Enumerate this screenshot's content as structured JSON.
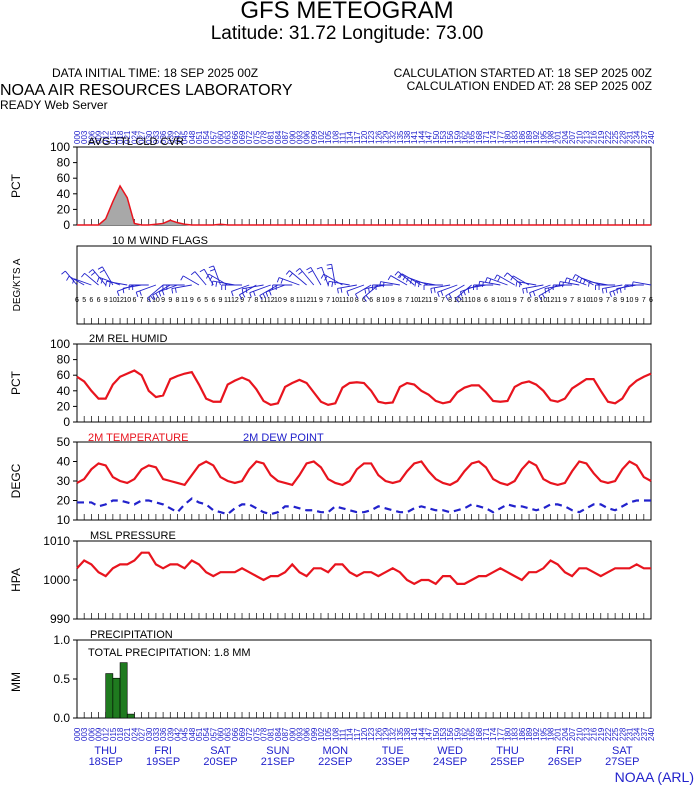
{
  "header": {
    "title": "GFS METEOGRAM",
    "location": "Latitude: 31.72 Longitude:  73.00",
    "init_time": "DATA INITIAL TIME: 18 SEP 2025 00Z",
    "calc_started": "CALCULATION STARTED AT: 18 SEP 2025 00Z",
    "calc_ended": "CALCULATION ENDED AT: 28 SEP 2025 00Z",
    "lab": "NOAA AIR RESOURCES LABORATORY",
    "server": "READY Web Server",
    "footer": "NOAA (ARL)"
  },
  "colors": {
    "red": "#e8141e",
    "blue": "#2222cc",
    "green": "#1f7a1f",
    "gray": "#a8a8a8"
  },
  "days": [
    {
      "dow": "THU",
      "date": "18SEP"
    },
    {
      "dow": "FRI",
      "date": "19SEP"
    },
    {
      "dow": "SAT",
      "date": "20SEP"
    },
    {
      "dow": "SUN",
      "date": "21SEP"
    },
    {
      "dow": "MON",
      "date": "22SEP"
    },
    {
      "dow": "TUE",
      "date": "23SEP"
    },
    {
      "dow": "WED",
      "date": "24SEP"
    },
    {
      "dow": "THU",
      "date": "25SEP"
    },
    {
      "dow": "FRI",
      "date": "26SEP"
    },
    {
      "dow": "SAT",
      "date": "27SEP"
    }
  ],
  "chart_data": [
    {
      "type": "area",
      "title": "AVG TTL CLD CVR",
      "ylabel": "PCT",
      "ylim": [
        0,
        100
      ],
      "yticks": [
        0,
        20,
        40,
        60,
        80,
        100
      ],
      "x_hours": [
        0,
        3,
        6,
        9,
        12,
        15,
        18,
        21,
        24,
        27,
        30,
        33,
        36,
        39,
        42,
        45,
        48,
        51,
        54,
        57,
        60,
        63,
        66,
        69,
        72,
        75,
        78,
        81,
        84,
        87,
        90,
        93,
        96,
        99,
        102,
        105,
        108,
        111,
        114,
        117,
        120,
        123,
        126,
        129,
        132,
        135,
        138,
        141,
        144,
        147,
        150,
        153,
        156,
        159,
        162,
        165,
        168,
        171,
        174,
        177,
        180,
        183,
        186,
        189,
        192,
        195,
        198,
        201,
        204,
        207,
        210,
        213,
        216,
        219,
        222,
        225,
        228,
        231,
        234,
        237,
        240
      ],
      "values": [
        0,
        0,
        0,
        0,
        8,
        30,
        50,
        35,
        2,
        0,
        0,
        1,
        2,
        6,
        3,
        1,
        0,
        0,
        0,
        0,
        1,
        0,
        0,
        0,
        0,
        0,
        0,
        0,
        0,
        0,
        0,
        0,
        0,
        0,
        0,
        0,
        0,
        0,
        0,
        0,
        0,
        0,
        0,
        0,
        0,
        0,
        0,
        0,
        0,
        0,
        0,
        0,
        0,
        0,
        0,
        0,
        0,
        0,
        0,
        0,
        0,
        0,
        0,
        0,
        0,
        0,
        0,
        0,
        0,
        0,
        0,
        0,
        0,
        0,
        0,
        0,
        0,
        0,
        0,
        0,
        0
      ]
    },
    {
      "type": "wind_flags",
      "title": "10 M  WIND FLAGS",
      "ylabel": "DEG/KTS  A",
      "x_hours": [
        0,
        3,
        6,
        9,
        12,
        15,
        18,
        21,
        24,
        27,
        30,
        33,
        36,
        39,
        42,
        45,
        48,
        51,
        54,
        57,
        60,
        63,
        66,
        69,
        72,
        75,
        78,
        81,
        84,
        87,
        90,
        93,
        96,
        99,
        102,
        105,
        108,
        111,
        114,
        117,
        120,
        123,
        126,
        129,
        132,
        135,
        138,
        141,
        144,
        147,
        150,
        153,
        156,
        159,
        162,
        165,
        168,
        171,
        174,
        177,
        180,
        183,
        186,
        189,
        192,
        195,
        198,
        201,
        204,
        207,
        210,
        213,
        216,
        219,
        222,
        225,
        228,
        231,
        234,
        237,
        240
      ],
      "speed_kts": [
        6,
        5,
        6,
        6,
        9,
        10,
        12,
        10,
        6,
        7,
        8,
        10,
        9,
        9,
        8,
        11,
        9,
        6,
        5,
        6,
        9,
        11,
        12,
        9,
        7,
        8,
        11,
        12,
        10,
        9,
        8,
        11,
        12,
        11,
        9,
        7,
        10,
        11,
        10,
        8,
        6,
        6,
        8,
        10,
        9,
        8,
        7,
        10,
        12,
        11,
        9,
        7,
        8,
        10,
        11,
        10,
        8,
        6,
        8,
        10,
        11,
        9,
        7,
        6,
        8,
        10,
        12,
        11,
        9,
        7,
        8,
        10,
        10,
        9,
        7,
        8,
        9,
        10,
        9,
        7,
        6
      ],
      "dir_deg": [
        320,
        300,
        290,
        310,
        320,
        330,
        290,
        280,
        250,
        260,
        270,
        250,
        230,
        240,
        250,
        270,
        260,
        300,
        320,
        330,
        340,
        300,
        280,
        270,
        250,
        240,
        260,
        250,
        240,
        250,
        270,
        290,
        310,
        320,
        330,
        340,
        350,
        300,
        280,
        260,
        250,
        240,
        230,
        260,
        270,
        280,
        300,
        310,
        300,
        290,
        280,
        270,
        260,
        250,
        240,
        230,
        250,
        260,
        270,
        280,
        290,
        300,
        310,
        300,
        280,
        260,
        250,
        240,
        260,
        270,
        280,
        290,
        300,
        290,
        280,
        270,
        260,
        250,
        260,
        270,
        280
      ]
    },
    {
      "type": "line",
      "title": "2M REL HUMID",
      "ylabel": "PCT",
      "ylim": [
        0,
        100
      ],
      "yticks": [
        0,
        20,
        40,
        60,
        80,
        100
      ],
      "x_hours": [
        0,
        3,
        6,
        9,
        12,
        15,
        18,
        21,
        24,
        27,
        30,
        33,
        36,
        39,
        42,
        45,
        48,
        51,
        54,
        57,
        60,
        63,
        66,
        69,
        72,
        75,
        78,
        81,
        84,
        87,
        90,
        93,
        96,
        99,
        102,
        105,
        108,
        111,
        114,
        117,
        120,
        123,
        126,
        129,
        132,
        135,
        138,
        141,
        144,
        147,
        150,
        153,
        156,
        159,
        162,
        165,
        168,
        171,
        174,
        177,
        180,
        183,
        186,
        189,
        192,
        195,
        198,
        201,
        204,
        207,
        210,
        213,
        216,
        219,
        222,
        225,
        228,
        231,
        234,
        237,
        240
      ],
      "values": [
        58,
        52,
        40,
        30,
        30,
        48,
        58,
        62,
        66,
        60,
        40,
        32,
        34,
        55,
        59,
        62,
        64,
        48,
        30,
        26,
        26,
        48,
        53,
        57,
        53,
        42,
        27,
        22,
        24,
        45,
        50,
        54,
        50,
        38,
        26,
        22,
        24,
        44,
        50,
        51,
        50,
        40,
        26,
        24,
        25,
        45,
        50,
        48,
        40,
        35,
        27,
        24,
        26,
        38,
        44,
        47,
        47,
        38,
        27,
        26,
        27,
        45,
        50,
        52,
        48,
        40,
        28,
        26,
        30,
        43,
        49,
        55,
        55,
        40,
        26,
        24,
        30,
        45,
        53,
        58,
        62
      ]
    },
    {
      "type": "line",
      "title": "2M TEMPERATURE",
      "title2": "2M  DEW POINT",
      "ylabel": "DEGC",
      "ylim": [
        10,
        50
      ],
      "yticks": [
        10,
        20,
        30,
        40,
        50
      ],
      "x_hours": [
        0,
        3,
        6,
        9,
        12,
        15,
        18,
        21,
        24,
        27,
        30,
        33,
        36,
        39,
        42,
        45,
        48,
        51,
        54,
        57,
        60,
        63,
        66,
        69,
        72,
        75,
        78,
        81,
        84,
        87,
        90,
        93,
        96,
        99,
        102,
        105,
        108,
        111,
        114,
        117,
        120,
        123,
        126,
        129,
        132,
        135,
        138,
        141,
        144,
        147,
        150,
        153,
        156,
        159,
        162,
        165,
        168,
        171,
        174,
        177,
        180,
        183,
        186,
        189,
        192,
        195,
        198,
        201,
        204,
        207,
        210,
        213,
        216,
        219,
        222,
        225,
        228,
        231,
        234,
        237,
        240
      ],
      "series": [
        {
          "name": "2M TEMPERATURE",
          "color": "red",
          "values": [
            29,
            31,
            36,
            39,
            38,
            32,
            30,
            29,
            31,
            36,
            38,
            37,
            31,
            30,
            29,
            28,
            33,
            38,
            40,
            38,
            32,
            30,
            29,
            30,
            36,
            40,
            39,
            33,
            30,
            29,
            28,
            33,
            39,
            40,
            37,
            31,
            29,
            28,
            30,
            36,
            39,
            39,
            33,
            30,
            29,
            30,
            35,
            39,
            40,
            35,
            31,
            29,
            28,
            30,
            35,
            39,
            40,
            37,
            31,
            29,
            28,
            30,
            36,
            40,
            38,
            31,
            29,
            28,
            29,
            35,
            40,
            39,
            34,
            30,
            29,
            30,
            36,
            40,
            38,
            32,
            30
          ]
        },
        {
          "name": "2M  DEW POINT",
          "color": "blue",
          "values": [
            19,
            19,
            19,
            17,
            18,
            20,
            20,
            19,
            18,
            20,
            20,
            19,
            18,
            16,
            14,
            18,
            21,
            19,
            18,
            15,
            14,
            13,
            16,
            18,
            18,
            16,
            14,
            13,
            14,
            17,
            17,
            16,
            15,
            15,
            14,
            14,
            17,
            16,
            15,
            14,
            14,
            15,
            17,
            16,
            15,
            14,
            14,
            16,
            17,
            16,
            15,
            15,
            14,
            15,
            16,
            18,
            17,
            16,
            14,
            16,
            18,
            17,
            17,
            16,
            15,
            16,
            18,
            18,
            17,
            15,
            14,
            16,
            18,
            18,
            16,
            15,
            17,
            19,
            20,
            20,
            20
          ]
        }
      ]
    },
    {
      "type": "line",
      "title": "MSL PRESSURE",
      "ylabel": "HPA",
      "ylim": [
        990,
        1010
      ],
      "yticks": [
        990,
        1000,
        1010
      ],
      "x_hours": [
        0,
        3,
        6,
        9,
        12,
        15,
        18,
        21,
        24,
        27,
        30,
        33,
        36,
        39,
        42,
        45,
        48,
        51,
        54,
        57,
        60,
        63,
        66,
        69,
        72,
        75,
        78,
        81,
        84,
        87,
        90,
        93,
        96,
        99,
        102,
        105,
        108,
        111,
        114,
        117,
        120,
        123,
        126,
        129,
        132,
        135,
        138,
        141,
        144,
        147,
        150,
        153,
        156,
        159,
        162,
        165,
        168,
        171,
        174,
        177,
        180,
        183,
        186,
        189,
        192,
        195,
        198,
        201,
        204,
        207,
        210,
        213,
        216,
        219,
        222,
        225,
        228,
        231,
        234,
        237,
        240
      ],
      "values": [
        1003,
        1005,
        1004,
        1002,
        1001,
        1003,
        1004,
        1004,
        1005,
        1007,
        1007,
        1004,
        1003,
        1004,
        1004,
        1003,
        1005,
        1004,
        1002,
        1001,
        1002,
        1002,
        1002,
        1003,
        1002,
        1001,
        1000,
        1001,
        1001,
        1002,
        1004,
        1002,
        1001,
        1003,
        1003,
        1002,
        1004,
        1004,
        1002,
        1001,
        1002,
        1002,
        1001,
        1002,
        1003,
        1002,
        1000,
        999,
        1000,
        1000,
        999,
        1001,
        1001,
        999,
        999,
        1000,
        1001,
        1001,
        1002,
        1003,
        1002,
        1001,
        1000,
        1002,
        1002,
        1003,
        1005,
        1004,
        1002,
        1001,
        1003,
        1003,
        1002,
        1001,
        1002,
        1003,
        1003,
        1003,
        1004,
        1003,
        1003
      ]
    },
    {
      "type": "bar",
      "title": "PRECIPITATION",
      "subtitle": "TOTAL PRECIPITATION:   1.8 MM",
      "ylabel": "MM",
      "ylim": [
        0,
        1
      ],
      "yticks": [
        "0.0",
        "0.5",
        "1.0"
      ],
      "x_hours": [
        12,
        15,
        18,
        21
      ],
      "values": [
        0.57,
        0.51,
        0.71,
        0.05
      ]
    }
  ]
}
